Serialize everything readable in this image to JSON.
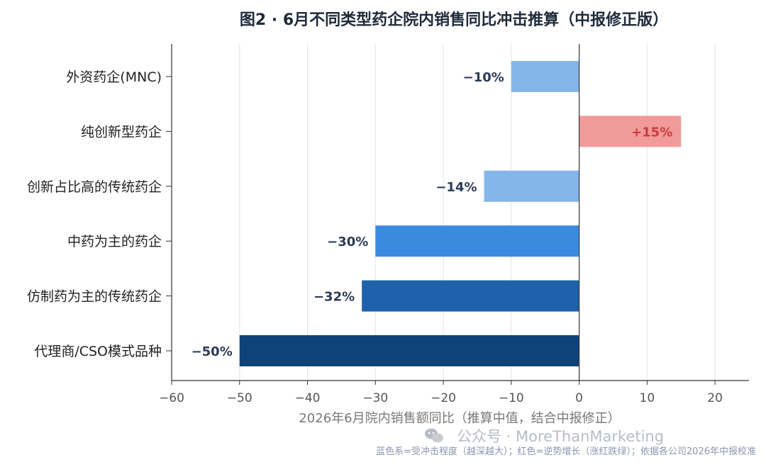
{
  "chart_data": {
    "type": "bar",
    "orientation": "horizontal",
    "title": "图2 · 6月不同类型药企院内销售同比冲击推算（中报修正版）",
    "xlabel": "2026年6月院内销售额同比（推算中值，结合中报修正）",
    "ylabel": "",
    "xlim": [
      -60,
      25
    ],
    "xticks": [
      -60,
      -50,
      -40,
      -30,
      -20,
      -10,
      0,
      10,
      20
    ],
    "xtick_labels": [
      "−60",
      "−50",
      "−40",
      "−30",
      "−20",
      "−10",
      "0",
      "10",
      "20"
    ],
    "grid": "vertical",
    "categories": [
      "外资药企(MNC)",
      "纯创新型药企",
      "创新占比高的传统药企",
      "中药为主的药企",
      "仿制药为主的传统药企",
      "代理商/CSO模式品种"
    ],
    "values": [
      -10,
      15,
      -14,
      -30,
      -32,
      -50
    ],
    "data_labels": [
      "−10%",
      "+15%",
      "−14%",
      "−30%",
      "−32%",
      "−50%"
    ],
    "colors": [
      "#85b6ea",
      "#f09a9a",
      "#85b6ea",
      "#3a8be0",
      "#1f61aa",
      "#0e4378"
    ],
    "label_colors": [
      "#2b3a55",
      "#cc3b3b",
      "#2b3a55",
      "#2b3a55",
      "#2b3a55",
      "#2b3a55"
    ],
    "note": "蓝色系=受冲击程度（越深越大）；红色=逆势增长（涨红跌绿）；依据各公司2026年中报校准"
  },
  "watermark": {
    "icon": "wechat-icon",
    "text": "公众号 · MoreThanMarketing"
  }
}
